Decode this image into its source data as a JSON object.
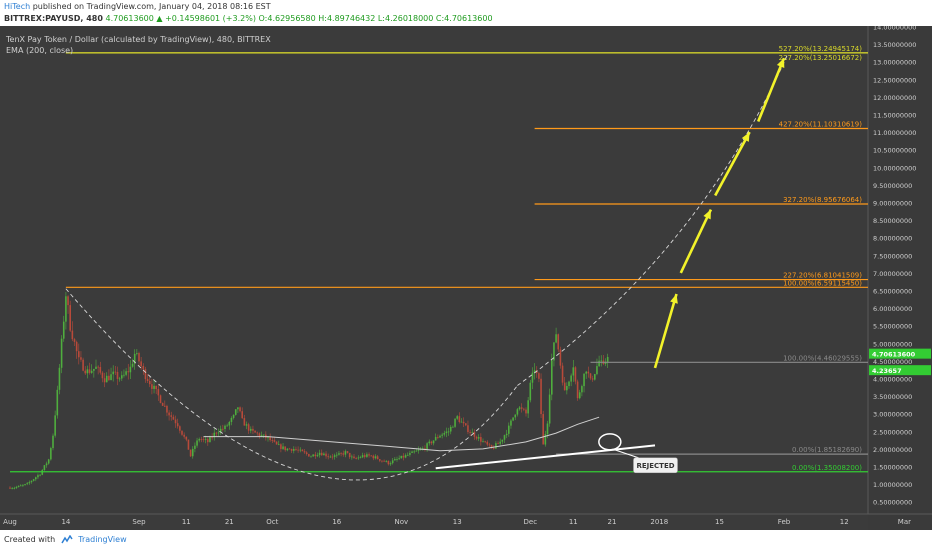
{
  "header": {
    "author": "HiTech",
    "published": "published on TradingView.com, January 04, 2018 08:16 EST",
    "symbol": "BITTREX:PAYUSD, 480",
    "change": "4.70613600 ▲ +0.14598601 (+3.2%)",
    "ohlc": "O:4.62956580 H:4.89746432 L:4.26018000 C:4.70613600"
  },
  "footer": {
    "created": "Created with",
    "brand": "TradingView"
  },
  "chart_data": {
    "type": "line",
    "title": "TenX Pay Token / Dollar (calculated by TradingView), 480, BITTREX",
    "subtitle": "EMA (200, close)",
    "ylim": [
      0.5,
      14.0
    ],
    "yticks": [
      "14.00000000",
      "13.50000000",
      "13.00000000",
      "12.50000000",
      "12.00000000",
      "11.50000000",
      "11.00000000",
      "10.50000000",
      "10.00000000",
      "9.50000000",
      "9.00000000",
      "8.50000000",
      "8.00000000",
      "7.50000000",
      "7.00000000",
      "6.50000000",
      "6.00000000",
      "5.50000000",
      "5.00000000",
      "4.50000000",
      "4.00000000",
      "3.50000000",
      "3.00000000",
      "2.50000000",
      "2.00000000",
      "1.50000000",
      "1.00000000",
      "0.50000000"
    ],
    "xticks": [
      "Aug",
      "14",
      "Sep",
      "11",
      "21",
      "Oct",
      "16",
      "Nov",
      "13",
      "Dec",
      "11",
      "21",
      "2018",
      "15",
      "Feb",
      "12",
      "Mar"
    ],
    "price": [
      [
        1,
        0.9
      ],
      [
        4,
        1.0
      ],
      [
        7,
        1.3
      ],
      [
        9,
        1.7
      ],
      [
        10,
        2.4
      ],
      [
        11,
        3.6
      ],
      [
        12,
        5.0
      ],
      [
        13,
        6.4
      ],
      [
        14,
        5.5
      ],
      [
        15,
        5.0
      ],
      [
        16,
        4.5
      ],
      [
        18,
        4.2
      ],
      [
        20,
        4.3
      ],
      [
        22,
        4.0
      ],
      [
        24,
        4.1
      ],
      [
        26,
        4.0
      ],
      [
        28,
        4.3
      ],
      [
        29,
        4.7
      ],
      [
        30,
        4.5
      ],
      [
        31,
        4.2
      ],
      [
        33,
        3.8
      ],
      [
        35,
        3.4
      ],
      [
        37,
        3.0
      ],
      [
        39,
        2.7
      ],
      [
        41,
        2.2
      ],
      [
        42,
        1.8
      ],
      [
        43,
        2.1
      ],
      [
        44,
        2.3
      ],
      [
        46,
        2.2
      ],
      [
        48,
        2.5
      ],
      [
        50,
        2.6
      ],
      [
        52,
        2.9
      ],
      [
        53,
        3.2
      ],
      [
        54,
        2.8
      ],
      [
        56,
        2.5
      ],
      [
        58,
        2.4
      ],
      [
        60,
        2.3
      ],
      [
        62,
        2.1
      ],
      [
        64,
        2.0
      ],
      [
        66,
        2.0
      ],
      [
        68,
        1.9
      ],
      [
        70,
        1.8
      ],
      [
        72,
        1.9
      ],
      [
        74,
        1.8
      ],
      [
        76,
        1.8
      ],
      [
        78,
        1.9
      ],
      [
        80,
        1.7
      ],
      [
        82,
        1.8
      ],
      [
        84,
        1.8
      ],
      [
        86,
        1.7
      ],
      [
        88,
        1.6
      ],
      [
        90,
        1.7
      ],
      [
        92,
        1.8
      ],
      [
        94,
        1.9
      ],
      [
        96,
        2.0
      ],
      [
        98,
        2.2
      ],
      [
        100,
        2.4
      ],
      [
        102,
        2.5
      ],
      [
        104,
        2.9
      ],
      [
        106,
        2.6
      ],
      [
        108,
        2.4
      ],
      [
        110,
        2.2
      ],
      [
        112,
        2.0
      ],
      [
        114,
        2.2
      ],
      [
        116,
        2.6
      ],
      [
        118,
        3.2
      ],
      [
        120,
        3.0
      ],
      [
        121,
        3.8
      ],
      [
        122,
        4.3
      ],
      [
        123,
        3.9
      ],
      [
        124,
        2.1
      ],
      [
        125,
        2.8
      ],
      [
        126,
        4.5
      ],
      [
        127,
        5.3
      ],
      [
        128,
        4.4
      ],
      [
        129,
        3.6
      ],
      [
        130,
        4.0
      ],
      [
        131,
        4.4
      ],
      [
        132,
        3.4
      ],
      [
        133,
        3.9
      ],
      [
        134,
        4.3
      ],
      [
        135,
        3.9
      ],
      [
        136,
        4.2
      ],
      [
        137,
        4.5
      ],
      [
        138,
        4.3
      ],
      [
        139,
        4.71
      ]
    ],
    "ema": [
      [
        45,
        2.35
      ],
      [
        60,
        2.35
      ],
      [
        75,
        2.2
      ],
      [
        90,
        2.05
      ],
      [
        100,
        1.95
      ],
      [
        110,
        2.0
      ],
      [
        120,
        2.2
      ],
      [
        127,
        2.45
      ],
      [
        132,
        2.7
      ],
      [
        137,
        2.9
      ]
    ],
    "fib_levels": [
      {
        "label": "527.20%(13.24945174)",
        "value": 13.24945174,
        "start_day": 13
      },
      {
        "label": "227.20%(13.25016672)",
        "value": 13.25016672,
        "start_day": 13
      },
      {
        "label": "427.20%(11.10310619)",
        "value": 11.10310619,
        "start_day": 122
      },
      {
        "label": "327.20%(8.95676064)",
        "value": 8.95676064,
        "start_day": 122
      },
      {
        "label": "227.20%(6.81041509)",
        "value": 6.81041509,
        "start_day": 122
      },
      {
        "label": "100.00%(6.59115450)",
        "value": 6.5911545,
        "start_day": 13
      },
      {
        "label": "100.00%(4.46029555)",
        "value": 4.46029555,
        "start_day": 135
      },
      {
        "label": "0.00%(1.85182690)",
        "value": 1.8518269,
        "start_day": 127
      },
      {
        "label": "0.00%(1.35008200)",
        "value": 1.350082,
        "start_day": 0
      }
    ],
    "annotation": "REJECTED",
    "price_tags": [
      "4.70613600",
      "4.23657"
    ],
    "colors": {
      "background": "#3b3b3b",
      "fib": "#ff9a1a",
      "top_line": "#d9d92a",
      "green": "#33cc33",
      "arrow": "#f2f22a",
      "candle_up": "#4fae3e",
      "candle_down": "#b84a3a",
      "ema": "#d0d0d0"
    }
  }
}
